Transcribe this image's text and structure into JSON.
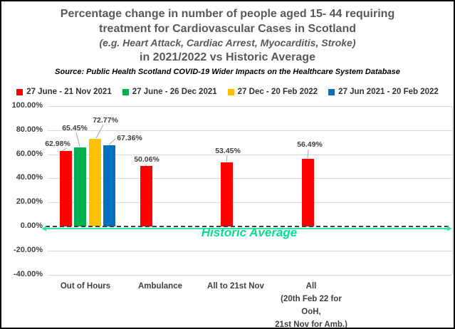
{
  "title": {
    "line1": "Percentage change in number of people aged 15- 44 requiring",
    "line2": "treatment for Cardiovascular Cases in Scotland",
    "line3": "(e.g. Heart Attack, Cardiac Arrest, Myocarditis, Stroke)",
    "line4": "in 2021/2022 vs Historic Average",
    "source": "Source: Public Health Scotland COVID-19 Wider Impacts on the Healthcare System Database"
  },
  "legend": [
    {
      "label": "27 June - 21 Nov 2021",
      "color": "#FF0000"
    },
    {
      "label": "27 June - 26 Dec 2021",
      "color": "#00B050"
    },
    {
      "label": "27 Dec - 20 Feb 2022",
      "color": "#FFC000"
    },
    {
      "label": "27 Jun 2021 - 20 Feb 2022",
      "color": "#0070C0"
    }
  ],
  "chart_data": {
    "type": "bar",
    "categories": [
      "Out of Hours",
      "Ambulance",
      "All to 21st Nov",
      "All\n(20th Feb 22 for\nOoH,\n21st Nov for Amb.)"
    ],
    "series": [
      {
        "name": "27 June - 21 Nov 2021",
        "color": "#FF0000",
        "values": [
          62.98,
          50.06,
          53.45,
          56.49
        ]
      },
      {
        "name": "27 June - 26 Dec 2021",
        "color": "#00B050",
        "values": [
          65.45,
          null,
          null,
          null
        ]
      },
      {
        "name": "27 Dec - 20 Feb 2022",
        "color": "#FFC000",
        "values": [
          72.77,
          null,
          null,
          null
        ]
      },
      {
        "name": "27 Jun 2021 - 20 Feb 2022",
        "color": "#0070C0",
        "values": [
          67.36,
          null,
          null,
          null
        ]
      }
    ],
    "data_label_format": "0.00%",
    "y_ticks": [
      100,
      80,
      60,
      40,
      20,
      0,
      -20,
      -40
    ],
    "ylim": [
      -40,
      100
    ],
    "grid": true,
    "legend_position": "top",
    "baseline": {
      "y": 0,
      "style": "dashed",
      "color": "#3f3f3f"
    },
    "annotation": {
      "text": "Historic Average",
      "color": "#00DF8E",
      "arrow_color": "#2FE5A5",
      "y": 0
    }
  }
}
